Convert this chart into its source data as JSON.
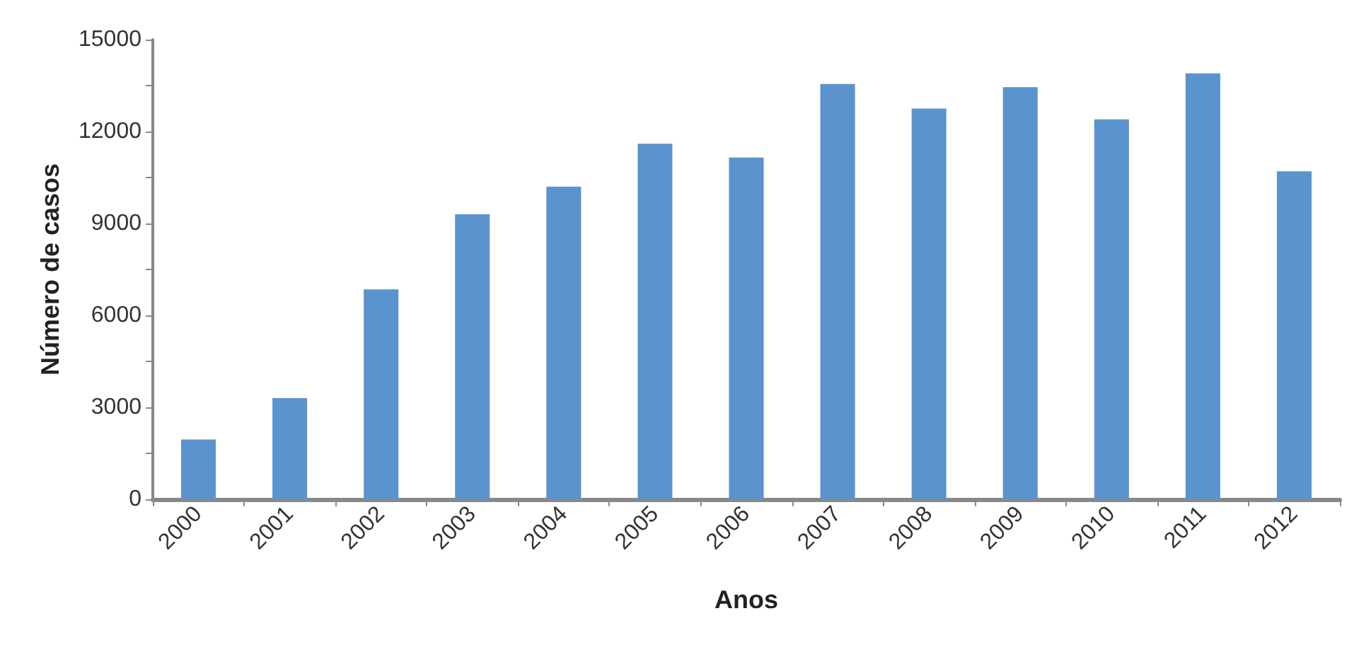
{
  "chart_data": {
    "type": "bar",
    "xlabel": "Anos",
    "ylabel": "Número de casos",
    "categories": [
      "2000",
      "2001",
      "2002",
      "2003",
      "2004",
      "2005",
      "2006",
      "2007",
      "2008",
      "2009",
      "2010",
      "2011",
      "2012"
    ],
    "values": [
      1950,
      3300,
      6850,
      9300,
      10200,
      11600,
      11150,
      13550,
      12750,
      13450,
      12400,
      13900,
      10700
    ],
    "color": "#5b93cf",
    "ylim": [
      0,
      15000
    ],
    "yticks": [
      0,
      {
        "value": 1500,
        "label": null
      },
      3000,
      {
        "value": 4500,
        "label": null
      },
      6000,
      {
        "value": 7500,
        "label": null
      },
      9000,
      {
        "value": 10500,
        "label": null
      },
      12000,
      {
        "value": 13500,
        "label": null
      },
      15000
    ],
    "grid": false
  }
}
